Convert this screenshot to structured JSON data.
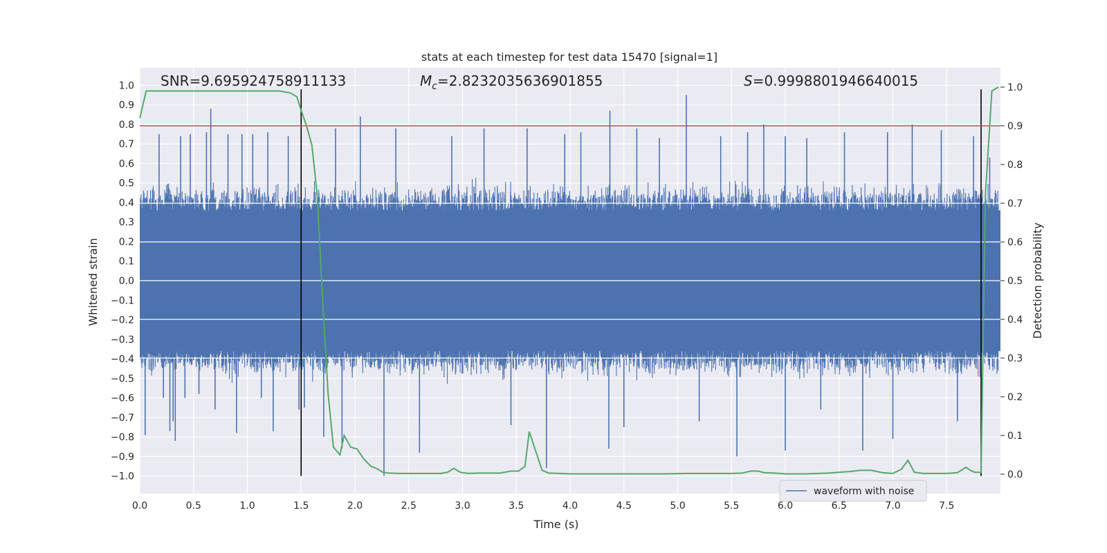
{
  "chart_data": {
    "type": "line",
    "title": "stats at each timestep for test data 15470 [signal=1]",
    "xlabel": "Time (s)",
    "ylabel": "Whitened strain",
    "y2label": "Detection probability",
    "xlim": [
      0.0,
      8.0
    ],
    "ylim": [
      -1.09,
      1.09
    ],
    "y2lim": [
      -0.05,
      1.05
    ],
    "xticks": [
      0.0,
      0.5,
      1.0,
      1.5,
      2.0,
      2.5,
      3.0,
      3.5,
      4.0,
      4.5,
      5.0,
      5.5,
      6.0,
      6.5,
      7.0,
      7.5
    ],
    "yticks": [
      1.0,
      0.9,
      0.8,
      0.7,
      0.6,
      0.5,
      0.4,
      0.3,
      0.2,
      0.1,
      0.0,
      -0.1,
      -0.2,
      -0.3,
      -0.4,
      -0.5,
      -0.6,
      -0.7,
      -0.8,
      -0.9,
      -1.0
    ],
    "y2ticks": [
      1.0,
      0.9,
      0.8,
      0.7,
      0.6,
      0.5,
      0.4,
      0.3,
      0.2,
      0.1,
      0.0
    ],
    "xtick_labels": [
      "0.0",
      "0.5",
      "1.0",
      "1.5",
      "2.0",
      "2.5",
      "3.0",
      "3.5",
      "4.0",
      "4.5",
      "5.0",
      "5.5",
      "6.0",
      "6.5",
      "7.0",
      "7.5"
    ],
    "ytick_labels": [
      "1.0",
      "0.9",
      "0.8",
      "0.7",
      "0.6",
      "0.5",
      "0.4",
      "0.3",
      "0.2",
      "0.1",
      "0.0",
      "−0.1",
      "−0.2",
      "−0.3",
      "−0.4",
      "−0.5",
      "−0.6",
      "−0.7",
      "−0.8",
      "−0.9",
      "−1.0"
    ],
    "y2tick_labels": [
      "1.0",
      "0.9",
      "0.8",
      "0.7",
      "0.6",
      "0.5",
      "0.4",
      "0.3",
      "0.2",
      "0.1",
      "0.0"
    ],
    "annotations": {
      "snr": "SNR=9.695924758911133",
      "mc_symbol": "M",
      "mc_sub": "c",
      "mc_value": "=2.8232035636901855",
      "s_symbol": "S",
      "s_value": "=0.9998801946640015"
    },
    "legend": {
      "label": "waveform with noise",
      "position": "lower right"
    },
    "threshold": {
      "y2": 0.9,
      "color": "#c44e52"
    },
    "vlines": [
      {
        "x": 1.5,
        "ymin": -1.0,
        "ymax": 0.98
      },
      {
        "x": 7.82,
        "ymin": -1.0,
        "ymax": 0.98
      }
    ],
    "noise_series": {
      "name": "waveform with noise",
      "color": "#4c72b0",
      "spikes": [
        [
          0.05,
          -0.79
        ],
        [
          0.18,
          0.75
        ],
        [
          0.22,
          -0.6
        ],
        [
          0.28,
          -0.77
        ],
        [
          0.31,
          -0.72
        ],
        [
          0.33,
          -0.82
        ],
        [
          0.38,
          0.74
        ],
        [
          0.42,
          -0.6
        ],
        [
          0.47,
          0.75
        ],
        [
          0.55,
          -0.58
        ],
        [
          0.62,
          0.76
        ],
        [
          0.66,
          0.88
        ],
        [
          0.7,
          -0.66
        ],
        [
          0.82,
          0.75
        ],
        [
          0.9,
          -0.78
        ],
        [
          0.95,
          0.75
        ],
        [
          1.05,
          0.75
        ],
        [
          1.13,
          -0.6
        ],
        [
          1.19,
          0.76
        ],
        [
          1.24,
          -0.77
        ],
        [
          1.38,
          0.74
        ],
        [
          1.48,
          -0.66
        ],
        [
          1.53,
          -0.65
        ],
        [
          1.71,
          -0.8
        ],
        [
          1.82,
          0.78
        ],
        [
          1.88,
          -0.86
        ],
        [
          2.05,
          0.84
        ],
        [
          2.27,
          -1.0
        ],
        [
          2.38,
          0.78
        ],
        [
          2.6,
          -0.88
        ],
        [
          2.9,
          0.74
        ],
        [
          3.2,
          0.78
        ],
        [
          3.45,
          -0.74
        ],
        [
          3.6,
          0.78
        ],
        [
          3.78,
          -0.96
        ],
        [
          3.95,
          0.75
        ],
        [
          4.1,
          0.76
        ],
        [
          4.37,
          0.87
        ],
        [
          4.36,
          -0.86
        ],
        [
          4.5,
          -0.75
        ],
        [
          4.62,
          0.78
        ],
        [
          4.83,
          0.73
        ],
        [
          5.08,
          0.95
        ],
        [
          5.2,
          -0.72
        ],
        [
          5.4,
          0.74
        ],
        [
          5.55,
          -0.9
        ],
        [
          5.65,
          0.76
        ],
        [
          5.8,
          0.8
        ],
        [
          6.0,
          0.74
        ],
        [
          6.0,
          -0.87
        ],
        [
          6.2,
          0.73
        ],
        [
          6.33,
          -0.66
        ],
        [
          6.55,
          0.76
        ],
        [
          6.72,
          -0.87
        ],
        [
          6.95,
          0.76
        ],
        [
          7.0,
          -0.81
        ],
        [
          7.18,
          0.8
        ],
        [
          7.45,
          0.77
        ],
        [
          7.6,
          -0.72
        ],
        [
          7.75,
          0.74
        ],
        [
          7.9,
          0.63
        ]
      ]
    },
    "probability_series": {
      "name": "Detection probability",
      "color": "#55a868",
      "x": [
        0.0,
        0.06,
        0.13,
        0.2,
        0.4,
        0.6,
        0.8,
        1.0,
        1.2,
        1.3,
        1.4,
        1.46,
        1.5,
        1.55,
        1.6,
        1.65,
        1.7,
        1.75,
        1.8,
        1.86,
        1.9,
        1.96,
        2.02,
        2.08,
        2.15,
        2.2,
        2.26,
        2.32,
        2.4,
        2.5,
        2.6,
        2.7,
        2.8,
        2.86,
        2.92,
        2.98,
        3.05,
        3.15,
        3.25,
        3.35,
        3.45,
        3.52,
        3.58,
        3.62,
        3.68,
        3.74,
        3.8,
        3.9,
        4.0,
        4.1,
        4.3,
        4.5,
        4.7,
        4.9,
        5.1,
        5.3,
        5.5,
        5.6,
        5.68,
        5.75,
        5.8,
        5.9,
        6.0,
        6.2,
        6.4,
        6.6,
        6.7,
        6.8,
        6.9,
        7.0,
        7.08,
        7.14,
        7.2,
        7.28,
        7.4,
        7.5,
        7.6,
        7.68,
        7.72,
        7.76,
        7.8,
        7.82,
        7.86,
        7.92,
        7.98
      ],
      "y": [
        0.92,
        0.99,
        0.99,
        0.99,
        0.99,
        0.99,
        0.99,
        0.99,
        0.99,
        0.99,
        0.985,
        0.975,
        0.94,
        0.9,
        0.85,
        0.72,
        0.45,
        0.21,
        0.07,
        0.05,
        0.1,
        0.07,
        0.065,
        0.04,
        0.02,
        0.015,
        0.005,
        0.003,
        0.002,
        0.002,
        0.002,
        0.002,
        0.002,
        0.005,
        0.015,
        0.005,
        0.002,
        0.003,
        0.003,
        0.003,
        0.008,
        0.008,
        0.02,
        0.11,
        0.06,
        0.01,
        0.003,
        0.002,
        0.001,
        0.001,
        0.001,
        0.001,
        0.001,
        0.001,
        0.002,
        0.002,
        0.002,
        0.003,
        0.008,
        0.008,
        0.004,
        0.003,
        0.001,
        0.001,
        0.003,
        0.007,
        0.01,
        0.01,
        0.004,
        0.002,
        0.013,
        0.036,
        0.005,
        0.002,
        0.002,
        0.002,
        0.004,
        0.018,
        0.01,
        0.005,
        0.005,
        0.005,
        0.72,
        0.99,
        1.0
      ]
    }
  }
}
